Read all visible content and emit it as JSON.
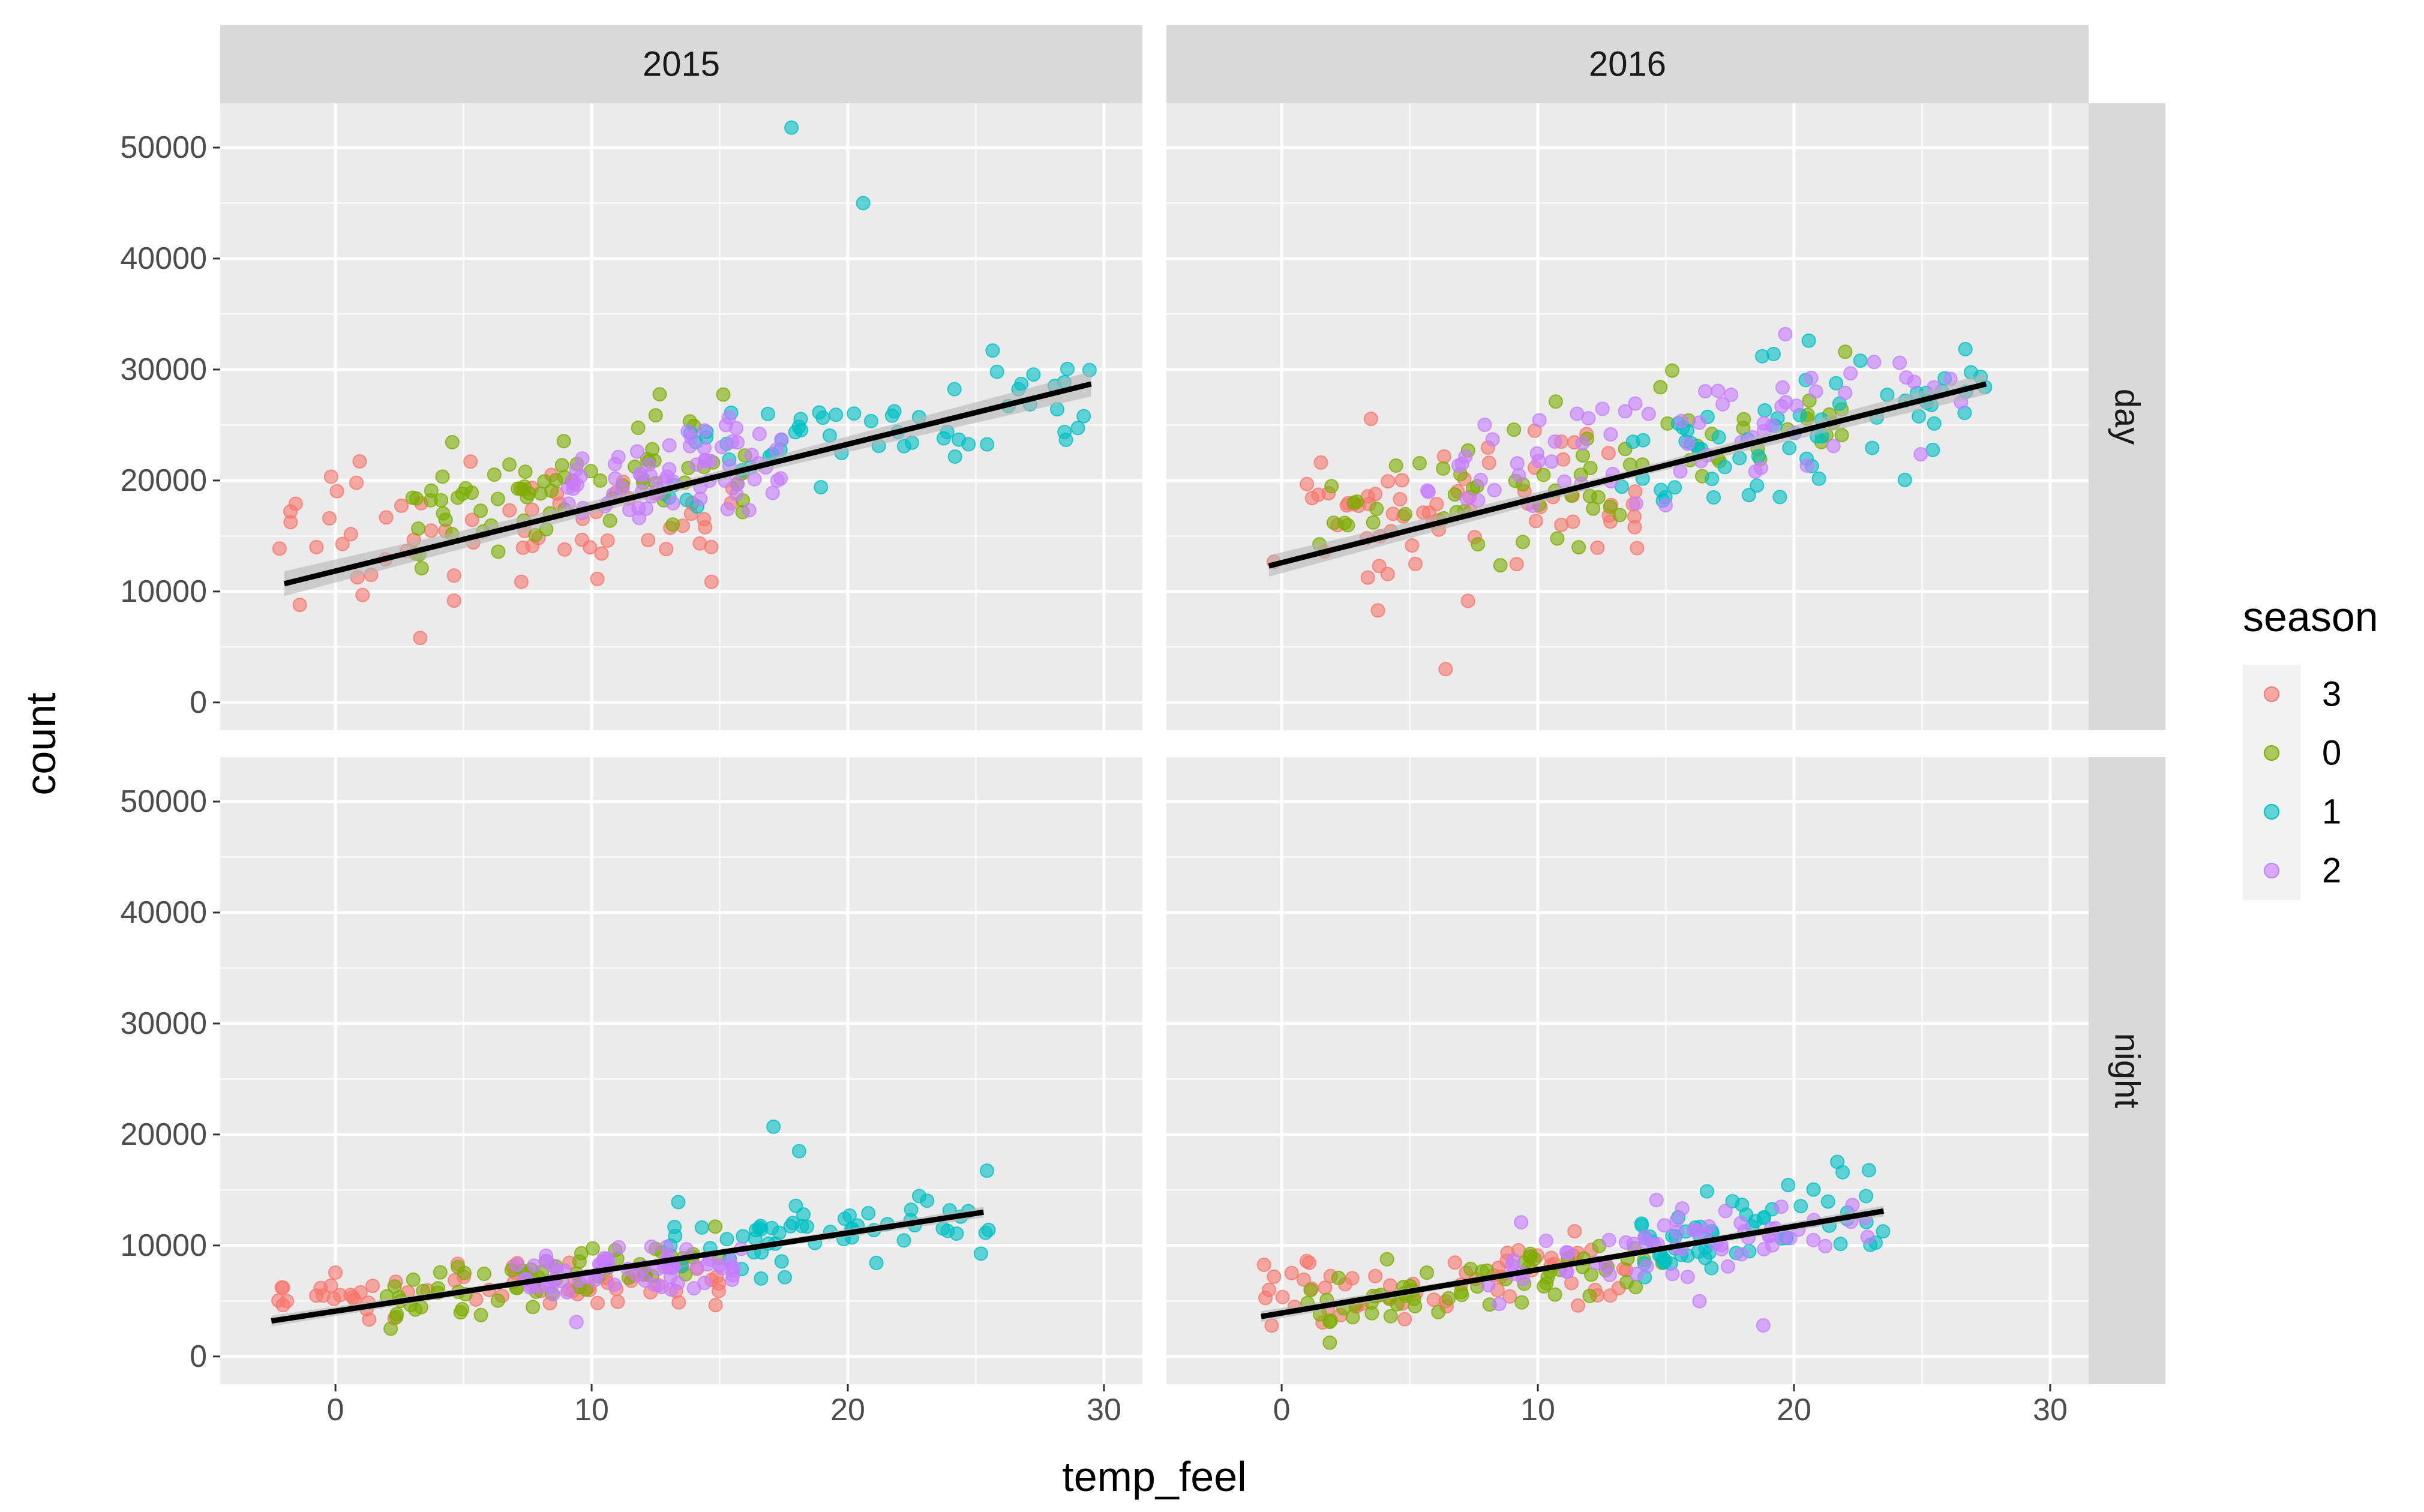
{
  "chart_data": {
    "type": "scatter",
    "facets": {
      "columns": [
        "2015",
        "2016"
      ],
      "rows": [
        "day",
        "night"
      ]
    },
    "xlabel": "temp_feel",
    "ylabel": "count",
    "xlim": [
      -4.5,
      31.5
    ],
    "ylim": [
      -2500,
      54000
    ],
    "x_ticks": [
      0,
      10,
      20,
      30
    ],
    "y_ticks": [
      0,
      10000,
      20000,
      30000,
      40000,
      50000
    ],
    "grid": true,
    "legend": {
      "title": "season",
      "position": "right",
      "entries": [
        {
          "label": "3",
          "color": "#F8766D"
        },
        {
          "label": "0",
          "color": "#7CAE00"
        },
        {
          "label": "1",
          "color": "#00BFC4"
        },
        {
          "label": "2",
          "color": "#C77CFF"
        }
      ]
    },
    "colors": {
      "panel_bg": "#EBEBEB",
      "strip_bg": "#D9D9D9",
      "grid_major": "#FFFFFF",
      "trend_line": "#000000",
      "ci_band": "#B5B5B5"
    },
    "trend_lines": [
      {
        "panel": "2015-day",
        "x": [
          -2,
          29.5
        ],
        "y": [
          10700,
          28700
        ],
        "se": 700
      },
      {
        "panel": "2016-day",
        "x": [
          -0.5,
          27.5
        ],
        "y": [
          12300,
          28700
        ],
        "se": 600
      },
      {
        "panel": "2015-night",
        "x": [
          -2.5,
          25.3
        ],
        "y": [
          3200,
          13000
        ],
        "se": 300
      },
      {
        "panel": "2016-night",
        "x": [
          -0.8,
          23.5
        ],
        "y": [
          3600,
          13100
        ],
        "se": 300
      }
    ],
    "clusters": [
      {
        "panel": "2015-day",
        "season": "3",
        "n": 70,
        "x": [
          -2.5,
          16
        ],
        "y0": 15500,
        "y1": 17500,
        "sd": 3200
      },
      {
        "panel": "2015-day",
        "season": "0",
        "n": 75,
        "x": [
          3,
          16
        ],
        "y0": 16000,
        "y1": 23000,
        "sd": 2600
      },
      {
        "panel": "2015-day",
        "season": "1",
        "n": 60,
        "x": [
          13,
          29.5
        ],
        "y0": 21000,
        "y1": 28000,
        "sd": 2600
      },
      {
        "panel": "2015-day",
        "season": "2",
        "n": 70,
        "x": [
          9,
          17.5
        ],
        "y0": 19000,
        "y1": 22500,
        "sd": 2300
      },
      {
        "panel": "2016-day",
        "season": "3",
        "n": 70,
        "x": [
          -0.5,
          14
        ],
        "y0": 15000,
        "y1": 19000,
        "sd": 3500
      },
      {
        "panel": "2016-day",
        "season": "0",
        "n": 70,
        "x": [
          1,
          22
        ],
        "y0": 16000,
        "y1": 26000,
        "sd": 2800
      },
      {
        "panel": "2016-day",
        "season": "1",
        "n": 65,
        "x": [
          13,
          27.5
        ],
        "y0": 21000,
        "y1": 28500,
        "sd": 2800
      },
      {
        "panel": "2016-day",
        "season": "2",
        "n": 70,
        "x": [
          5,
          27
        ],
        "y0": 20000,
        "y1": 28000,
        "sd": 3000
      },
      {
        "panel": "2015-night",
        "season": "3",
        "n": 65,
        "x": [
          -2.5,
          15
        ],
        "y0": 5500,
        "y1": 6500,
        "sd": 1300
      },
      {
        "panel": "2015-night",
        "season": "0",
        "n": 65,
        "x": [
          2,
          15
        ],
        "y0": 5500,
        "y1": 9500,
        "sd": 1300
      },
      {
        "panel": "2015-night",
        "season": "1",
        "n": 60,
        "x": [
          13,
          25.5
        ],
        "y0": 9500,
        "y1": 13000,
        "sd": 1700
      },
      {
        "panel": "2015-night",
        "season": "2",
        "n": 65,
        "x": [
          7,
          16
        ],
        "y0": 6500,
        "y1": 8500,
        "sd": 1200
      },
      {
        "panel": "2016-night",
        "season": "3",
        "n": 65,
        "x": [
          -1,
          14
        ],
        "y0": 5000,
        "y1": 8000,
        "sd": 1500
      },
      {
        "panel": "2016-night",
        "season": "0",
        "n": 65,
        "x": [
          1,
          15
        ],
        "y0": 5000,
        "y1": 9000,
        "sd": 1500
      },
      {
        "panel": "2016-night",
        "season": "1",
        "n": 60,
        "x": [
          14,
          23.5
        ],
        "y0": 10000,
        "y1": 13000,
        "sd": 1800
      },
      {
        "panel": "2016-night",
        "season": "2",
        "n": 65,
        "x": [
          8,
          23
        ],
        "y0": 8000,
        "y1": 12000,
        "sd": 1600
      }
    ],
    "highlights": [
      {
        "panel": "2015-day",
        "season": "1",
        "x": 17.8,
        "y": 51800
      },
      {
        "panel": "2015-day",
        "season": "1",
        "x": 20.6,
        "y": 45000
      },
      {
        "panel": "2015-night",
        "season": "1",
        "x": 17.1,
        "y": 20700
      },
      {
        "panel": "2015-night",
        "season": "1",
        "x": 18.1,
        "y": 18500
      },
      {
        "panel": "2016-day",
        "season": "1",
        "x": 19.2,
        "y": 31400
      },
      {
        "panel": "2016-day",
        "season": "0",
        "x": 22.0,
        "y": 31600
      },
      {
        "panel": "2016-day",
        "season": "3",
        "x": 6.4,
        "y": 3000
      },
      {
        "panel": "2016-night",
        "season": "1",
        "x": 21.9,
        "y": 16600
      },
      {
        "panel": "2016-night",
        "season": "2",
        "x": 18.8,
        "y": 2800
      }
    ]
  }
}
